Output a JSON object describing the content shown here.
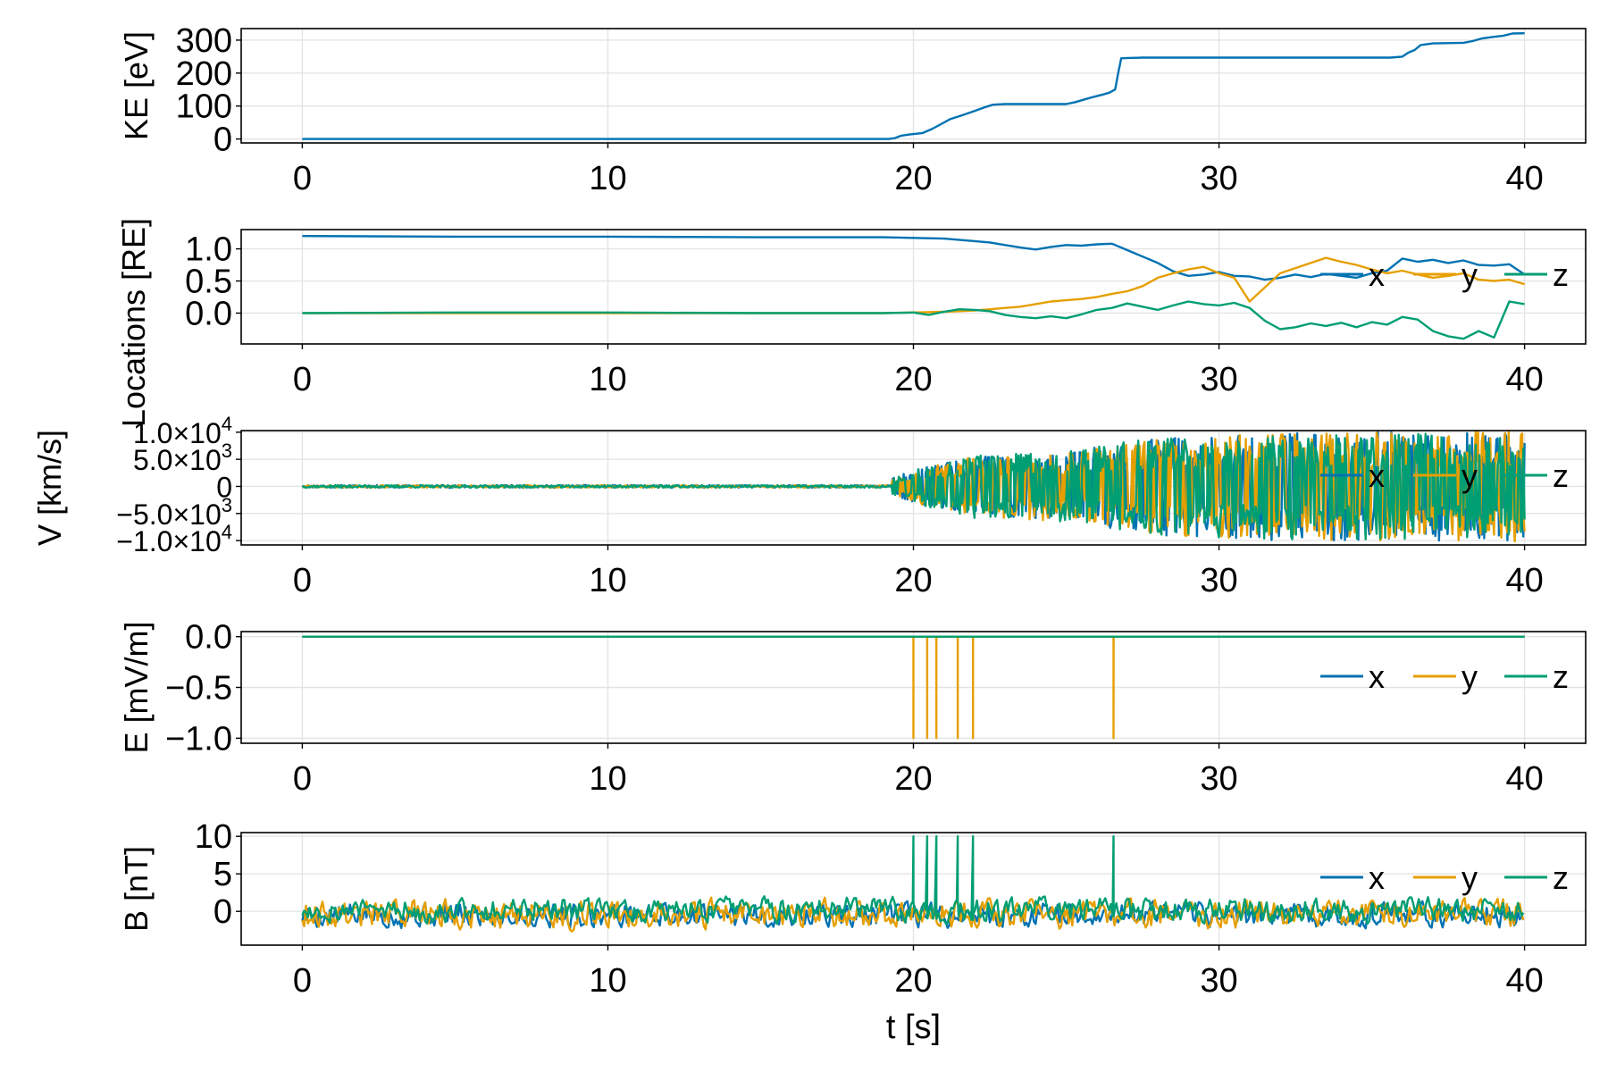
{
  "colors": {
    "x": "#0072B2",
    "y": "#E69F00",
    "z": "#009E73",
    "grid": "#e4e4e4"
  },
  "chart_data": [
    {
      "type": "line",
      "ylabel": "KE [eV]",
      "xlabel": "",
      "xlim": [
        -2,
        42
      ],
      "ylim": [
        -12,
        335
      ],
      "xticks": [
        0,
        10,
        20,
        30,
        40
      ],
      "xtick_labels": [
        "0",
        "10",
        "20",
        "30",
        "40"
      ],
      "yticks": [
        0,
        100,
        200,
        300
      ],
      "ytick_labels": [
        "0",
        "100",
        "200",
        "300"
      ],
      "grid": true,
      "legend": null,
      "series": [
        {
          "key": "x",
          "x": [
            0,
            19.2,
            19.4,
            19.6,
            19.9,
            20.3,
            20.6,
            20.9,
            21.2,
            21.6,
            22.0,
            22.3,
            22.6,
            23.0,
            24.0,
            25.0,
            25.3,
            25.6,
            25.9,
            26.2,
            26.4,
            26.6,
            26.7,
            26.8,
            27.5,
            30.0,
            35.0,
            35.6,
            36.0,
            36.2,
            36.4,
            36.6,
            37.0,
            38.0,
            38.3,
            38.6,
            39.0,
            39.3,
            39.6,
            40.0
          ],
          "y": [
            0,
            0,
            3,
            10,
            14,
            18,
            30,
            45,
            60,
            72,
            85,
            95,
            104,
            106,
            106,
            106,
            112,
            120,
            128,
            135,
            140,
            150,
            200,
            245,
            247,
            247,
            247,
            247,
            250,
            262,
            270,
            285,
            290,
            292,
            297,
            305,
            310,
            313,
            320,
            321
          ]
        }
      ]
    },
    {
      "type": "line",
      "ylabel": "Locations [RE]",
      "xlabel": "",
      "xlim": [
        -2,
        42
      ],
      "ylim": [
        -0.48,
        1.3
      ],
      "xticks": [
        0,
        10,
        20,
        30,
        40
      ],
      "xtick_labels": [
        "0",
        "10",
        "20",
        "30",
        "40"
      ],
      "yticks": [
        0.0,
        0.5,
        1.0
      ],
      "ytick_labels": [
        "0.0",
        "0.5",
        "1.0"
      ],
      "grid": true,
      "legend": {
        "position": "right",
        "entries": [
          "x",
          "y",
          "z"
        ]
      },
      "series": [
        {
          "name": "x",
          "key": "x",
          "x": [
            0,
            5,
            10,
            15,
            19,
            20,
            21,
            22,
            22.5,
            23,
            23.5,
            24,
            24.5,
            25,
            25.5,
            26,
            26.5,
            27,
            27.5,
            28,
            28.5,
            29,
            29.5,
            30,
            30.5,
            31,
            31.5,
            32,
            32.5,
            33,
            33.5,
            34,
            34.5,
            35,
            35.5,
            36,
            36.5,
            37,
            37.5,
            38,
            38.5,
            39,
            39.5,
            40
          ],
          "y": [
            1.2,
            1.19,
            1.19,
            1.18,
            1.18,
            1.17,
            1.16,
            1.12,
            1.1,
            1.06,
            1.02,
            0.99,
            1.03,
            1.06,
            1.05,
            1.07,
            1.08,
            0.98,
            0.88,
            0.78,
            0.65,
            0.58,
            0.6,
            0.64,
            0.58,
            0.57,
            0.52,
            0.55,
            0.6,
            0.56,
            0.61,
            0.58,
            0.55,
            0.62,
            0.66,
            0.85,
            0.8,
            0.83,
            0.78,
            0.82,
            0.75,
            0.74,
            0.76,
            0.6
          ]
        },
        {
          "name": "y",
          "key": "y",
          "x": [
            0,
            5,
            10,
            15,
            19,
            20,
            21,
            22,
            22.5,
            23,
            23.5,
            24,
            24.5,
            25,
            25.5,
            26,
            26.5,
            27,
            27.5,
            28,
            28.5,
            29,
            29.5,
            30,
            30.5,
            31,
            31.5,
            32,
            32.5,
            33,
            33.5,
            34,
            34.5,
            35,
            35.5,
            36,
            36.5,
            37,
            37.5,
            38,
            38.5,
            39,
            39.5,
            40
          ],
          "y": [
            0.0,
            0.0,
            0.0,
            0.0,
            0.0,
            0.01,
            0.02,
            0.04,
            0.06,
            0.08,
            0.1,
            0.14,
            0.18,
            0.2,
            0.22,
            0.25,
            0.3,
            0.34,
            0.42,
            0.55,
            0.62,
            0.68,
            0.72,
            0.62,
            0.55,
            0.18,
            0.4,
            0.62,
            0.7,
            0.78,
            0.86,
            0.8,
            0.75,
            0.68,
            0.62,
            0.66,
            0.6,
            0.55,
            0.58,
            0.62,
            0.52,
            0.5,
            0.52,
            0.45
          ]
        },
        {
          "name": "z",
          "key": "z",
          "x": [
            0,
            5,
            10,
            15,
            19,
            20,
            20.5,
            21,
            21.5,
            22,
            22.5,
            23,
            23.5,
            24,
            24.5,
            25,
            25.5,
            26,
            26.5,
            27,
            27.5,
            28,
            28.5,
            29,
            29.5,
            30,
            30.5,
            31,
            31.5,
            32,
            32.5,
            33,
            33.5,
            34,
            34.5,
            35,
            35.5,
            36,
            36.5,
            37,
            37.5,
            38,
            38.5,
            39,
            39.5,
            40
          ],
          "y": [
            0.0,
            0.01,
            0.01,
            0.0,
            0.0,
            0.01,
            -0.03,
            0.02,
            0.06,
            0.05,
            0.03,
            -0.03,
            -0.06,
            -0.08,
            -0.05,
            -0.08,
            -0.02,
            0.05,
            0.08,
            0.15,
            0.1,
            0.05,
            0.12,
            0.18,
            0.14,
            0.12,
            0.16,
            0.08,
            -0.12,
            -0.25,
            -0.22,
            -0.16,
            -0.2,
            -0.15,
            -0.22,
            -0.14,
            -0.18,
            -0.06,
            -0.1,
            -0.28,
            -0.36,
            -0.4,
            -0.28,
            -0.38,
            0.18,
            0.14
          ]
        }
      ]
    },
    {
      "type": "line",
      "ylabel": "V [km/s]",
      "xlabel": "",
      "xlim": [
        -2,
        42
      ],
      "ylim": [
        -10800,
        10300
      ],
      "xticks": [
        0,
        10,
        20,
        30,
        40
      ],
      "xtick_labels": [
        "0",
        "10",
        "20",
        "30",
        "40"
      ],
      "yticks": [
        10000,
        5000,
        0,
        -5000,
        -10000
      ],
      "ytick_labels": [
        {
          "mant": "1.0×10",
          "exp": "4"
        },
        {
          "mant": "5.0×10",
          "exp": "3"
        },
        {
          "mant": "0",
          "exp": ""
        },
        {
          "mant": "−5.0×10",
          "exp": "3"
        },
        {
          "mant": "−1.0×10",
          "exp": "4"
        }
      ],
      "grid": true,
      "legend": {
        "position": "right",
        "entries": [
          "x",
          "y",
          "z"
        ]
      },
      "series": [
        {
          "name": "x",
          "key": "x",
          "pattern": "oscillation",
          "seed": 11,
          "quiet_amp": 250,
          "onset": 19.3,
          "env": [
            [
              19.3,
              1500
            ],
            [
              20,
              3000
            ],
            [
              22,
              5500
            ],
            [
              25,
              6500
            ],
            [
              28,
              9000
            ],
            [
              32,
              10000
            ],
            [
              40,
              10000
            ]
          ]
        },
        {
          "name": "y",
          "key": "y",
          "pattern": "oscillation",
          "seed": 23,
          "quiet_amp": 220,
          "onset": 19.3,
          "env": [
            [
              19.3,
              1500
            ],
            [
              20,
              3000
            ],
            [
              22,
              5500
            ],
            [
              25,
              6500
            ],
            [
              28,
              9000
            ],
            [
              32,
              10000
            ],
            [
              40,
              10200
            ]
          ]
        },
        {
          "name": "z",
          "key": "z",
          "pattern": "oscillation",
          "seed": 37,
          "quiet_amp": 240,
          "onset": 19.3,
          "env": [
            [
              19.3,
              1500
            ],
            [
              20,
              3200
            ],
            [
              22,
              5800
            ],
            [
              25,
              6800
            ],
            [
              28,
              9000
            ],
            [
              32,
              9800
            ],
            [
              40,
              10000
            ]
          ]
        }
      ]
    },
    {
      "type": "line",
      "ylabel": "E [mV/m]",
      "xlabel": "",
      "xlim": [
        -2,
        42
      ],
      "ylim": [
        -1.05,
        0.05
      ],
      "xticks": [
        0,
        10,
        20,
        30,
        40
      ],
      "xtick_labels": [
        "0",
        "10",
        "20",
        "30",
        "40"
      ],
      "yticks": [
        0.0,
        -0.5,
        -1.0
      ],
      "ytick_labels": [
        "0.0",
        "−0.5",
        "−1.0"
      ],
      "grid": true,
      "legend": {
        "position": "right",
        "entries": [
          "x",
          "y",
          "z"
        ]
      },
      "series": [
        {
          "name": "x",
          "key": "x",
          "x": [
            0,
            40
          ],
          "y": [
            0,
            0
          ]
        },
        {
          "name": "y",
          "key": "y",
          "pattern": "spikes",
          "base": 0,
          "spike_value": -1.0,
          "spike_x": [
            20.0,
            20.45,
            20.75,
            21.45,
            21.95,
            26.55
          ]
        },
        {
          "name": "z",
          "key": "z",
          "x": [
            0,
            40
          ],
          "y": [
            0,
            0
          ]
        }
      ]
    },
    {
      "type": "line",
      "ylabel": "B [nT]",
      "xlabel": "t [s]",
      "xlim": [
        -2,
        42
      ],
      "ylim": [
        -4.5,
        10.5
      ],
      "xticks": [
        0,
        10,
        20,
        30,
        40
      ],
      "xtick_labels": [
        "0",
        "10",
        "20",
        "30",
        "40"
      ],
      "yticks": [
        10,
        5,
        0
      ],
      "ytick_labels": [
        "10",
        "5",
        "0"
      ],
      "grid": true,
      "legend": {
        "position": "right",
        "entries": [
          "x",
          "y",
          "z"
        ]
      },
      "series": [
        {
          "name": "x",
          "key": "x",
          "pattern": "noise",
          "seed": 5,
          "center": -0.5,
          "amp": 2.2
        },
        {
          "name": "y",
          "key": "y",
          "pattern": "noise",
          "seed": 9,
          "center": -0.3,
          "amp": 2.6
        },
        {
          "name": "z",
          "key": "z",
          "pattern": "noise",
          "seed": 14,
          "center": 0.2,
          "amp": 2.2,
          "spike_value": 10,
          "spike_x": [
            20.0,
            20.45,
            20.75,
            21.45,
            21.95,
            26.55
          ]
        }
      ]
    }
  ]
}
